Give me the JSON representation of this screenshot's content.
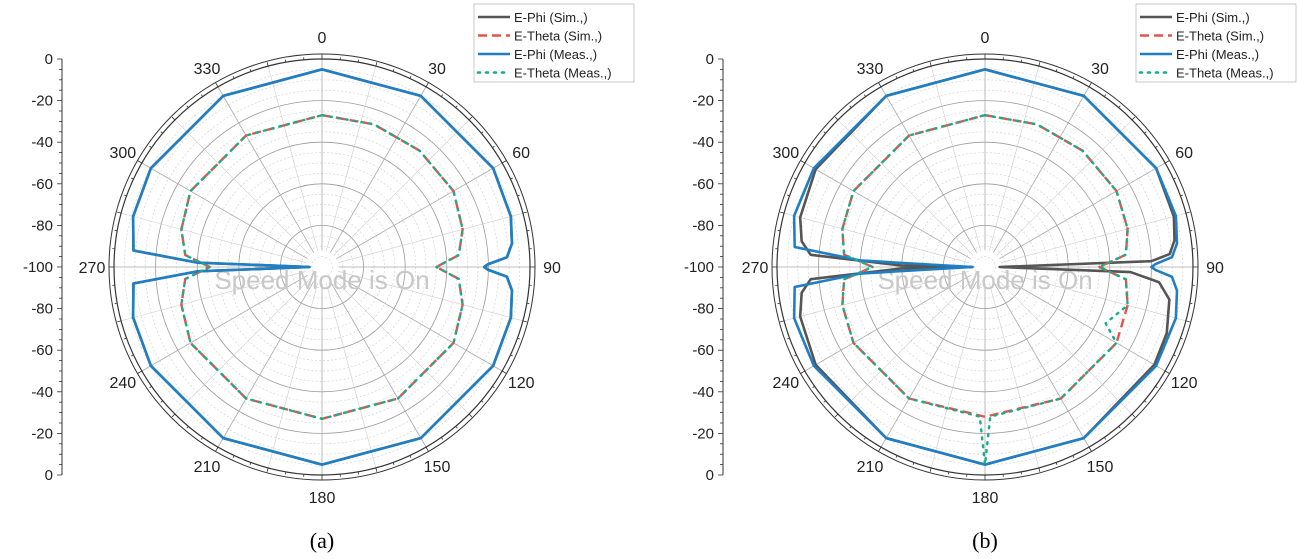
{
  "chart_data": [
    {
      "type": "polar-line",
      "caption": "(a)",
      "watermark": "Speed Mode is On",
      "radial_ticks": [
        "0",
        "-20",
        "-40",
        "-60",
        "-80",
        "-100",
        "-80",
        "-60",
        "-40",
        "-20",
        "0"
      ],
      "angle_labels": [
        "0",
        "30",
        "60",
        "90",
        "120",
        "150",
        "180",
        "210",
        "240",
        "270",
        "300",
        "330"
      ],
      "grid": true,
      "legend_position": "top-right",
      "series": [
        {
          "name": "E-Phi (Sim.,)",
          "color": "#555555",
          "style": "solid",
          "points": [
            [
              0,
              -5
            ],
            [
              30,
              -5
            ],
            [
              60,
              -5
            ],
            [
              75,
              -6
            ],
            [
              83,
              -8
            ],
            [
              87,
              -11
            ],
            [
              89,
              -20
            ],
            [
              90,
              -22
            ],
            [
              91,
              -20
            ],
            [
              93,
              -11
            ],
            [
              97,
              -8
            ],
            [
              105,
              -6
            ],
            [
              120,
              -5
            ],
            [
              150,
              -5
            ],
            [
              180,
              -5
            ],
            [
              210,
              -5
            ],
            [
              240,
              -5
            ],
            [
              255,
              -6
            ],
            [
              265,
              -9
            ],
            [
              268,
              -40
            ],
            [
              270,
              -94
            ],
            [
              272,
              -40
            ],
            [
              275,
              -9
            ],
            [
              285,
              -6
            ],
            [
              300,
              -5
            ],
            [
              330,
              -5
            ],
            [
              360,
              -5
            ]
          ]
        },
        {
          "name": "E-Theta (Sim.,)",
          "color": "#e0564b",
          "style": "dashed",
          "points": [
            [
              0,
              -27
            ],
            [
              20,
              -27
            ],
            [
              40,
              -27
            ],
            [
              60,
              -27
            ],
            [
              75,
              -30
            ],
            [
              85,
              -34
            ],
            [
              90,
              -45
            ],
            [
              95,
              -34
            ],
            [
              105,
              -30
            ],
            [
              120,
              -27
            ],
            [
              150,
              -27
            ],
            [
              180,
              -27
            ],
            [
              210,
              -27
            ],
            [
              240,
              -27
            ],
            [
              255,
              -30
            ],
            [
              265,
              -34
            ],
            [
              270,
              -46
            ],
            [
              275,
              -34
            ],
            [
              285,
              -30
            ],
            [
              300,
              -27
            ],
            [
              330,
              -27
            ],
            [
              360,
              -27
            ]
          ]
        },
        {
          "name": "E-Phi (Meas.,)",
          "color": "#1f7fc4",
          "style": "solid",
          "points": [
            [
              0,
              -5
            ],
            [
              30,
              -5
            ],
            [
              60,
              -5
            ],
            [
              75,
              -6
            ],
            [
              83,
              -8
            ],
            [
              87,
              -11
            ],
            [
              89,
              -20
            ],
            [
              90,
              -22
            ],
            [
              91,
              -20
            ],
            [
              93,
              -11
            ],
            [
              97,
              -8
            ],
            [
              105,
              -6
            ],
            [
              120,
              -5
            ],
            [
              150,
              -5
            ],
            [
              180,
              -5
            ],
            [
              210,
              -5
            ],
            [
              240,
              -5
            ],
            [
              255,
              -6
            ],
            [
              265,
              -9
            ],
            [
              268,
              -40
            ],
            [
              270,
              -94
            ],
            [
              272,
              -40
            ],
            [
              275,
              -9
            ],
            [
              285,
              -6
            ],
            [
              300,
              -5
            ],
            [
              330,
              -5
            ],
            [
              360,
              -5
            ]
          ]
        },
        {
          "name": "E-Theta (Meas.,)",
          "color": "#1aab8a",
          "style": "dotted",
          "points": [
            [
              0,
              -27
            ],
            [
              20,
              -27
            ],
            [
              40,
              -27
            ],
            [
              60,
              -27
            ],
            [
              75,
              -30
            ],
            [
              85,
              -34
            ],
            [
              90,
              -45
            ],
            [
              95,
              -34
            ],
            [
              105,
              -30
            ],
            [
              120,
              -27
            ],
            [
              150,
              -27
            ],
            [
              180,
              -27
            ],
            [
              210,
              -27
            ],
            [
              240,
              -27
            ],
            [
              255,
              -30
            ],
            [
              265,
              -34
            ],
            [
              270,
              -46
            ],
            [
              275,
              -34
            ],
            [
              285,
              -30
            ],
            [
              300,
              -27
            ],
            [
              330,
              -27
            ],
            [
              360,
              -27
            ]
          ]
        }
      ]
    },
    {
      "type": "polar-line",
      "caption": "(b)",
      "watermark": "Speed Mode is On",
      "radial_ticks": [
        "0",
        "-20",
        "-40",
        "-60",
        "-80",
        "-100",
        "-80",
        "-60",
        "-40",
        "-20",
        "0"
      ],
      "angle_labels": [
        "0",
        "30",
        "60",
        "90",
        "120",
        "150",
        "180",
        "210",
        "240",
        "270",
        "300",
        "330"
      ],
      "grid": true,
      "legend_position": "top-right",
      "series": [
        {
          "name": "E-Phi (Sim.,)",
          "color": "#555555",
          "style": "solid",
          "points": [
            [
              0,
              -5
            ],
            [
              30,
              -5
            ],
            [
              60,
              -5
            ],
            [
              75,
              -6
            ],
            [
              82,
              -8
            ],
            [
              86,
              -11
            ],
            [
              88,
              -20
            ],
            [
              90,
              -93
            ],
            [
              92,
              -30
            ],
            [
              95,
              -16
            ],
            [
              100,
              -10
            ],
            [
              110,
              -7
            ],
            [
              120,
              -6
            ],
            [
              150,
              -5
            ],
            [
              180,
              -5
            ],
            [
              210,
              -5
            ],
            [
              240,
              -6
            ],
            [
              255,
              -8
            ],
            [
              262,
              -11
            ],
            [
              266,
              -16
            ],
            [
              269,
              -60
            ],
            [
              270,
              -94
            ],
            [
              271,
              -60
            ],
            [
              274,
              -16
            ],
            [
              278,
              -11
            ],
            [
              285,
              -8
            ],
            [
              300,
              -6
            ],
            [
              330,
              -5
            ],
            [
              360,
              -5
            ]
          ]
        },
        {
          "name": "E-Theta (Sim.,)",
          "color": "#e0564b",
          "style": "dashed",
          "points": [
            [
              0,
              -27
            ],
            [
              20,
              -27
            ],
            [
              40,
              -27
            ],
            [
              60,
              -27
            ],
            [
              75,
              -29
            ],
            [
              85,
              -32
            ],
            [
              90,
              -45
            ],
            [
              95,
              -32
            ],
            [
              105,
              -29
            ],
            [
              120,
              -27
            ],
            [
              150,
              -27
            ],
            [
              180,
              -28
            ],
            [
              210,
              -27
            ],
            [
              240,
              -27
            ],
            [
              255,
              -29
            ],
            [
              265,
              -32
            ],
            [
              270,
              -46
            ],
            [
              275,
              -32
            ],
            [
              285,
              -29
            ],
            [
              300,
              -27
            ],
            [
              330,
              -27
            ],
            [
              360,
              -27
            ]
          ]
        },
        {
          "name": "E-Phi (Meas.,)",
          "color": "#1f7fc4",
          "style": "solid",
          "points": [
            [
              0,
              -5
            ],
            [
              30,
              -5
            ],
            [
              60,
              -5
            ],
            [
              75,
              -5
            ],
            [
              83,
              -7
            ],
            [
              87,
              -10
            ],
            [
              89,
              -18
            ],
            [
              90,
              -20
            ],
            [
              91,
              -18
            ],
            [
              93,
              -10
            ],
            [
              97,
              -7
            ],
            [
              105,
              -5
            ],
            [
              120,
              -5
            ],
            [
              150,
              -5
            ],
            [
              180,
              -5
            ],
            [
              210,
              -5
            ],
            [
              240,
              -5
            ],
            [
              255,
              -5
            ],
            [
              264,
              -8
            ],
            [
              267,
              -40
            ],
            [
              270,
              -94
            ],
            [
              273,
              -40
            ],
            [
              276,
              -8
            ],
            [
              285,
              -5
            ],
            [
              300,
              -5
            ],
            [
              330,
              -5
            ],
            [
              360,
              -5
            ]
          ]
        },
        {
          "name": "E-Theta (Meas.,)",
          "color": "#1aab8a",
          "style": "dotted",
          "points": [
            [
              0,
              -27
            ],
            [
              20,
              -27
            ],
            [
              40,
              -27
            ],
            [
              60,
              -27
            ],
            [
              75,
              -29
            ],
            [
              85,
              -32
            ],
            [
              90,
              -45
            ],
            [
              95,
              -32
            ],
            [
              105,
              -29
            ],
            [
              115,
              -36
            ],
            [
              120,
              -27
            ],
            [
              150,
              -27
            ],
            [
              178,
              -28
            ],
            [
              180,
              -5
            ],
            [
              182,
              -28
            ],
            [
              210,
              -27
            ],
            [
              240,
              -27
            ],
            [
              255,
              -29
            ],
            [
              265,
              -32
            ],
            [
              270,
              -46
            ],
            [
              275,
              -32
            ],
            [
              285,
              -29
            ],
            [
              300,
              -27
            ],
            [
              330,
              -27
            ],
            [
              360,
              -27
            ]
          ]
        }
      ]
    }
  ]
}
